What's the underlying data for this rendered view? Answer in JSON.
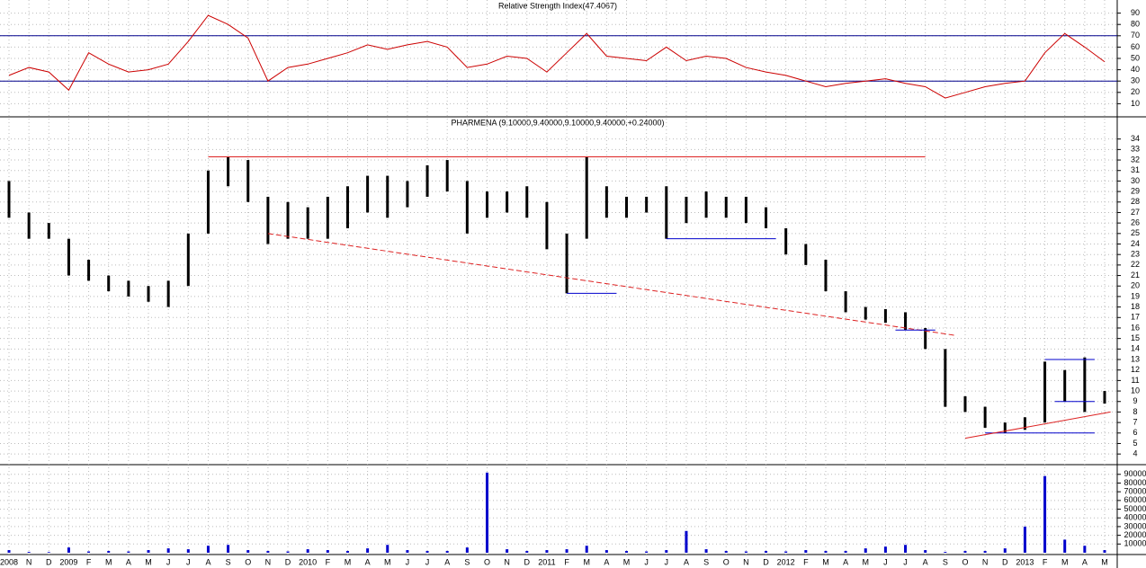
{
  "chart_data": [
    {
      "type": "line",
      "title": "Relative Strength Index(47.4067)",
      "color": "#cc0000",
      "values": [
        35,
        42,
        38,
        22,
        55,
        45,
        38,
        40,
        45,
        65,
        88,
        80,
        68,
        30,
        42,
        45,
        50,
        55,
        62,
        58,
        62,
        65,
        60,
        42,
        45,
        52,
        50,
        38,
        55,
        72,
        52,
        50,
        48,
        60,
        48,
        52,
        50,
        42,
        38,
        35,
        30,
        25,
        28,
        30,
        32,
        28,
        25,
        15,
        20,
        25,
        28,
        30,
        55,
        72,
        60,
        47
      ],
      "ylim": [
        0,
        100
      ],
      "yticks": [
        10,
        20,
        30,
        40,
        50,
        60,
        70,
        80,
        90
      ],
      "reference_lines": [
        70,
        30
      ],
      "reference_color": "#00008b",
      "grid": true
    },
    {
      "type": "range-bar",
      "title": "PHARMENA (9.10000,9.40000,9.10000,9.40000,+0.24000)",
      "color": "#000000",
      "high": [
        30,
        27,
        26,
        24.5,
        22.5,
        21,
        20.5,
        20,
        20.5,
        25,
        31,
        32.3,
        32,
        28.5,
        28,
        27.5,
        28.5,
        29.5,
        30.5,
        30.5,
        30,
        31.5,
        32,
        30,
        29,
        29,
        29.5,
        28,
        25,
        32.3,
        29.5,
        28.5,
        28.5,
        29.5,
        28.5,
        29,
        28.5,
        28.5,
        27.5,
        25.5,
        24,
        22.5,
        19.5,
        18,
        17.8,
        17.5,
        16,
        14,
        9.5,
        8.5,
        7,
        7.5,
        12.8,
        12,
        13.2,
        10
      ],
      "low": [
        26.5,
        24.5,
        24.5,
        21,
        20.5,
        19.5,
        19,
        18.5,
        18,
        20,
        25,
        29.5,
        28,
        24,
        24.5,
        24.5,
        24.5,
        25.5,
        27,
        26.5,
        27.5,
        28.5,
        29,
        25,
        26.5,
        27,
        26.5,
        23.5,
        19.3,
        24.5,
        26.5,
        26.5,
        27,
        24.5,
        26,
        26.5,
        26.5,
        26,
        25.5,
        23,
        22,
        19.5,
        17.5,
        16.8,
        16.5,
        15.8,
        14,
        8.5,
        8,
        6.5,
        6,
        6.3,
        7,
        9,
        8,
        8.8
      ],
      "ylim": [
        3.5,
        35
      ],
      "yticks": [
        4,
        5,
        6,
        7,
        8,
        9,
        10,
        11,
        12,
        13,
        14,
        15,
        16,
        17,
        18,
        19,
        20,
        21,
        22,
        23,
        24,
        25,
        26,
        27,
        28,
        29,
        30,
        31,
        32,
        33,
        34
      ],
      "grid": true,
      "trend_lines": [
        {
          "from": [
            10,
            32.3
          ],
          "to": [
            46,
            32.3
          ],
          "color": "#dd2222",
          "dash": false
        },
        {
          "from": [
            13,
            25
          ],
          "to": [
            47.5,
            15.3
          ],
          "color": "#dd2222",
          "dash": true
        },
        {
          "from": [
            28,
            19.3
          ],
          "to": [
            30.5,
            19.3
          ],
          "color": "#0000cc",
          "dash": false
        },
        {
          "from": [
            33,
            24.5
          ],
          "to": [
            38.5,
            24.5
          ],
          "color": "#0000cc",
          "dash": false
        },
        {
          "from": [
            44.5,
            15.8
          ],
          "to": [
            46.5,
            15.8
          ],
          "color": "#0000cc",
          "dash": false
        },
        {
          "from": [
            52,
            13
          ],
          "to": [
            54.5,
            13
          ],
          "color": "#0000cc",
          "dash": false
        },
        {
          "from": [
            52.5,
            9
          ],
          "to": [
            54.5,
            9
          ],
          "color": "#0000cc",
          "dash": false
        },
        {
          "from": [
            49,
            6
          ],
          "to": [
            54.5,
            6
          ],
          "color": "#0000cc",
          "dash": false
        },
        {
          "from": [
            48,
            5.5
          ],
          "to": [
            55.3,
            8
          ],
          "color": "#dd2222",
          "dash": false
        }
      ]
    },
    {
      "type": "bar",
      "color": "#0000cc",
      "categories": [
        "2008",
        "N",
        "D",
        "2009",
        "F",
        "M",
        "A",
        "M",
        "J",
        "J",
        "A",
        "S",
        "O",
        "N",
        "D",
        "2010",
        "F",
        "M",
        "A",
        "M",
        "J",
        "J",
        "A",
        "S",
        "O",
        "N",
        "D",
        "2011",
        "F",
        "M",
        "A",
        "M",
        "J",
        "J",
        "A",
        "S",
        "O",
        "N",
        "D",
        "2012",
        "F",
        "M",
        "A",
        "M",
        "J",
        "J",
        "A",
        "S",
        "O",
        "N",
        "D",
        "2013",
        "F",
        "M",
        "A",
        "M"
      ],
      "values": [
        3000,
        1000,
        800,
        6000,
        1500,
        2000,
        1500,
        3000,
        5000,
        4000,
        8000,
        9000,
        3000,
        2000,
        1500,
        4000,
        3000,
        2000,
        5000,
        9000,
        3000,
        2000,
        2000,
        6000,
        92000,
        4000,
        2000,
        3000,
        4000,
        8000,
        3000,
        2000,
        1500,
        3000,
        25000,
        4000,
        2000,
        1500,
        2000,
        1500,
        3000,
        2000,
        2000,
        5000,
        7000,
        9000,
        3000,
        1000,
        2000,
        2000,
        5000,
        30000,
        88000,
        15000,
        8000,
        3000
      ],
      "ylim": [
        0,
        97000
      ],
      "yticks": [
        10000,
        20000,
        30000,
        40000,
        50000,
        60000,
        70000,
        80000,
        90000
      ],
      "grid": true
    }
  ]
}
